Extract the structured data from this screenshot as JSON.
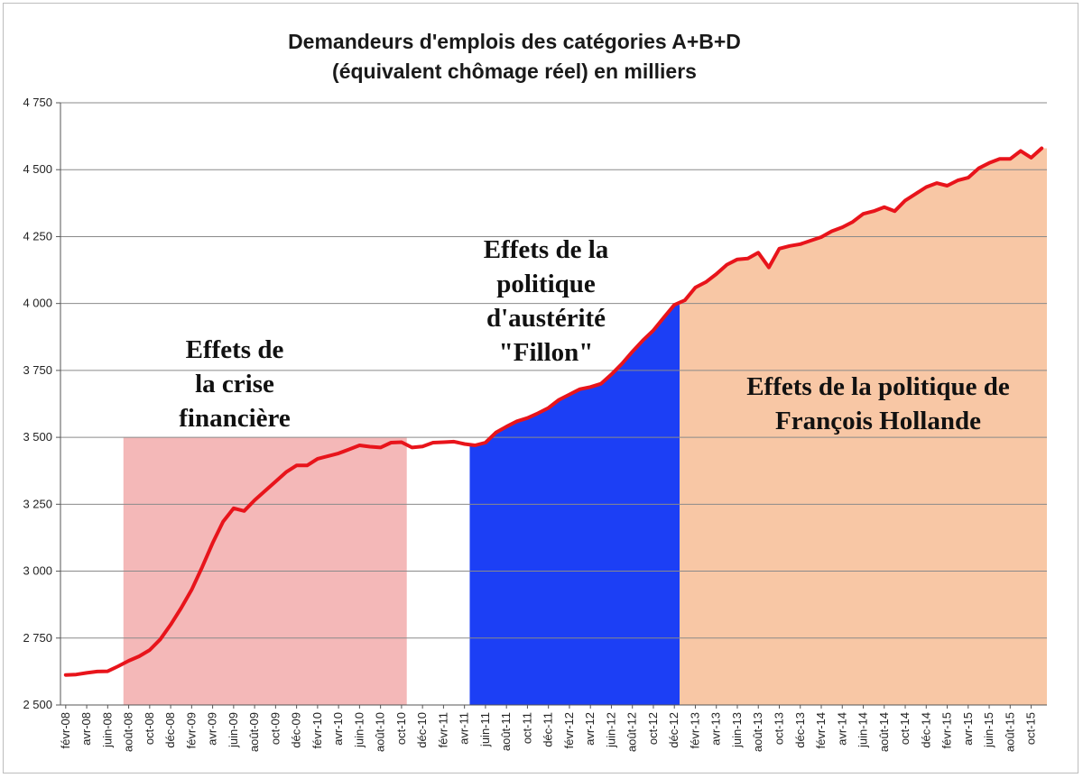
{
  "chart_data": {
    "type": "line",
    "title": "Demandeurs d'emplois des catégories A+B+D",
    "subtitle": "(équivalent chômage réel) en milliers",
    "ylim": [
      2500,
      4750
    ],
    "yticks": [
      "2 500",
      "2 750",
      "3 000",
      "3 250",
      "3 500",
      "3 750",
      "4 000",
      "4 250",
      "4 500",
      "4 750"
    ],
    "ytick_values": [
      2500,
      2750,
      3000,
      3250,
      3500,
      3750,
      4000,
      4250,
      4500,
      4750
    ],
    "x_tick_labels": [
      "févr-08",
      "avr-08",
      "juin-08",
      "août-08",
      "oct-08",
      "déc-08",
      "févr-09",
      "avr-09",
      "juin-09",
      "août-09",
      "oct-09",
      "déc-09",
      "févr-10",
      "avr-10",
      "juin-10",
      "août-10",
      "oct-10",
      "déc-10",
      "févr-11",
      "avr-11",
      "juin-11",
      "août-11",
      "oct-11",
      "déc-11",
      "févr-12",
      "avr-12",
      "juin-12",
      "août-12",
      "oct-12",
      "déc-12",
      "févr-13",
      "avr-13",
      "juin-13",
      "août-13",
      "oct-13",
      "déc-13",
      "févr-14",
      "avr-14",
      "juin-14",
      "août-14",
      "oct-14",
      "déc-14",
      "févr-15",
      "avr-15",
      "juin-15",
      "août-15",
      "oct-15"
    ],
    "grid": true,
    "series": [
      {
        "color": "#e8141b",
        "start": "févr-08",
        "values": [
          2612,
          2614,
          2620,
          2625,
          2626,
          2645,
          2665,
          2682,
          2705,
          2745,
          2800,
          2862,
          2930,
          3015,
          3105,
          3185,
          3235,
          3225,
          3265,
          3300,
          3335,
          3370,
          3395,
          3395,
          3420,
          3430,
          3440,
          3455,
          3470,
          3465,
          3462,
          3480,
          3482,
          3462,
          3466,
          3480,
          3482,
          3484,
          3475,
          3470,
          3480,
          3518,
          3540,
          3560,
          3572,
          3590,
          3610,
          3640,
          3660,
          3680,
          3688,
          3700,
          3735,
          3775,
          3820,
          3862,
          3900,
          3948,
          3995,
          4012,
          4060,
          4080,
          4110,
          4145,
          4165,
          4168,
          4190,
          4135,
          4205,
          4215,
          4222,
          4235,
          4248,
          4270,
          4285,
          4305,
          4335,
          4345,
          4360,
          4345,
          4385,
          4410,
          4435,
          4450,
          4440,
          4460,
          4470,
          4505,
          4525,
          4540,
          4540,
          4570,
          4545,
          4580
        ]
      }
    ],
    "regions": [
      {
        "label_lines": [
          "Effets de",
          "la crise",
          "financière"
        ],
        "color": "#f4b8b8",
        "from": "août-08",
        "to": "oct-10",
        "top": 3500
      },
      {
        "label_lines": [
          "Effets de la",
          "politique",
          "d'austérité",
          "\"Fillon\""
        ],
        "color": "#1c3ff5",
        "from": "mai-11",
        "to": "déc-12",
        "top": 4000
      },
      {
        "label_lines": [
          "Effets de la politique de",
          "François Hollande"
        ],
        "color": "#f8c7a5",
        "from": "janv-13",
        "to": "nov-15",
        "top": 4750
      }
    ]
  }
}
